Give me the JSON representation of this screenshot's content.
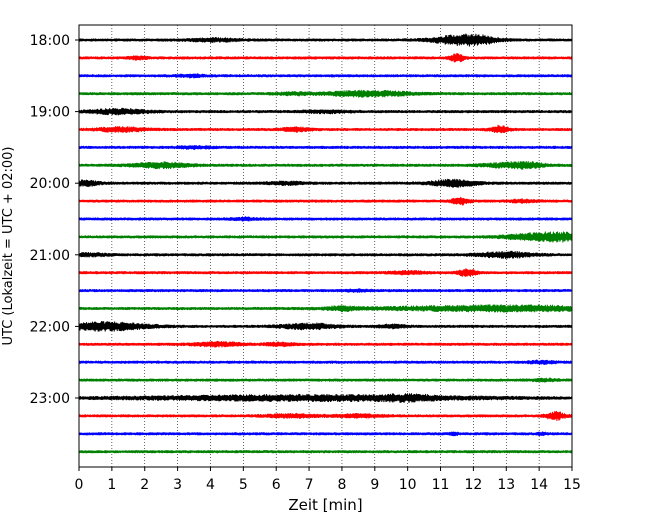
{
  "chart_data": {
    "type": "line",
    "subtype": "helicorder",
    "title": "",
    "xlabel": "Zeit  [min]",
    "ylabel": "UTC (Lokalzeit = UTC + 02:00)",
    "xlim": [
      0,
      15
    ],
    "x_ticks": [
      "0",
      "1",
      "2",
      "3",
      "4",
      "5",
      "6",
      "7",
      "8",
      "9",
      "10",
      "11",
      "12",
      "13",
      "14",
      "15"
    ],
    "y_tick_labels": [
      "18:00",
      "19:00",
      "20:00",
      "21:00",
      "22:00",
      "23:00"
    ],
    "grid": "vertical-dotted",
    "line_colors": [
      "#000000",
      "#ff0000",
      "#0000ff",
      "#008000"
    ],
    "traces": [
      {
        "time": "18:00",
        "color": "#000000",
        "events": [
          [
            4.1,
            0.5,
            0.9
          ],
          [
            11.6,
            0.6,
            2.6
          ],
          [
            12.2,
            0.4,
            1.2
          ]
        ]
      },
      {
        "time": "18:15",
        "color": "#ff0000",
        "events": [
          [
            11.5,
            0.15,
            2.2
          ],
          [
            1.8,
            0.2,
            0.8
          ]
        ]
      },
      {
        "time": "18:30",
        "color": "#0000ff",
        "events": [
          [
            3.4,
            0.3,
            0.7
          ]
        ]
      },
      {
        "time": "18:45",
        "color": "#008000",
        "events": [
          [
            8.8,
            0.9,
            1.6
          ],
          [
            6.5,
            0.4,
            0.6
          ]
        ]
      },
      {
        "time": "19:00",
        "color": "#000000",
        "events": [
          [
            1.2,
            0.6,
            1.5
          ],
          [
            7.5,
            0.5,
            0.7
          ]
        ]
      },
      {
        "time": "19:15",
        "color": "#ff0000",
        "events": [
          [
            1.3,
            0.5,
            1.3
          ],
          [
            6.6,
            0.3,
            1.1
          ],
          [
            12.8,
            0.2,
            2.0
          ]
        ]
      },
      {
        "time": "19:30",
        "color": "#0000ff",
        "events": [
          [
            3.5,
            0.4,
            0.6
          ]
        ]
      },
      {
        "time": "19:45",
        "color": "#008000",
        "events": [
          [
            2.5,
            0.6,
            1.5
          ],
          [
            12.8,
            0.5,
            0.9
          ],
          [
            13.6,
            0.4,
            1.6
          ]
        ]
      },
      {
        "time": "20:00",
        "color": "#000000",
        "events": [
          [
            0.2,
            0.3,
            1.5
          ],
          [
            11.4,
            0.5,
            2.0
          ],
          [
            6.3,
            0.4,
            0.8
          ]
        ]
      },
      {
        "time": "20:15",
        "color": "#ff0000",
        "events": [
          [
            11.6,
            0.2,
            1.9
          ],
          [
            13.5,
            0.3,
            0.7
          ]
        ]
      },
      {
        "time": "20:30",
        "color": "#0000ff",
        "events": [
          [
            5.0,
            0.3,
            0.7
          ]
        ]
      },
      {
        "time": "20:45",
        "color": "#008000",
        "events": [
          [
            14.6,
            0.7,
            2.6
          ],
          [
            13.4,
            0.5,
            0.8
          ]
        ]
      },
      {
        "time": "21:00",
        "color": "#000000",
        "events": [
          [
            13.0,
            0.6,
            1.6
          ],
          [
            0.3,
            0.4,
            0.8
          ]
        ]
      },
      {
        "time": "21:15",
        "color": "#ff0000",
        "events": [
          [
            11.8,
            0.2,
            2.0
          ],
          [
            10.0,
            0.4,
            0.8
          ]
        ]
      },
      {
        "time": "21:30",
        "color": "#0000ff",
        "events": [
          [
            8.5,
            0.3,
            0.5
          ]
        ]
      },
      {
        "time": "21:45",
        "color": "#008000",
        "events": [
          [
            13.0,
            2.6,
            1.6
          ],
          [
            8.0,
            0.3,
            1.1
          ]
        ]
      },
      {
        "time": "22:00",
        "color": "#000000",
        "events": [
          [
            0.8,
            0.9,
            2.4
          ],
          [
            7.0,
            0.6,
            1.6
          ],
          [
            9.5,
            0.3,
            0.9
          ]
        ]
      },
      {
        "time": "22:15",
        "color": "#ff0000",
        "events": [
          [
            4.2,
            0.5,
            1.2
          ],
          [
            6.1,
            0.3,
            0.9
          ]
        ]
      },
      {
        "time": "22:30",
        "color": "#0000ff",
        "events": [
          [
            14.1,
            0.3,
            0.8
          ]
        ]
      },
      {
        "time": "22:45",
        "color": "#008000",
        "events": [
          [
            14.2,
            0.3,
            0.6
          ]
        ]
      },
      {
        "time": "23:00",
        "color": "#000000",
        "events": [
          [
            7.0,
            3.6,
            1.6
          ],
          [
            10.0,
            0.5,
            1.0
          ]
        ]
      },
      {
        "time": "23:15",
        "color": "#ff0000",
        "events": [
          [
            14.5,
            0.2,
            2.3
          ],
          [
            6.5,
            0.6,
            0.9
          ],
          [
            8.5,
            0.5,
            0.8
          ]
        ]
      },
      {
        "time": "23:30",
        "color": "#0000ff",
        "events": [
          [
            11.4,
            0.1,
            0.7
          ],
          [
            14.1,
            0.1,
            0.6
          ]
        ]
      },
      {
        "time": "23:45",
        "color": "#008000",
        "events": []
      }
    ]
  }
}
